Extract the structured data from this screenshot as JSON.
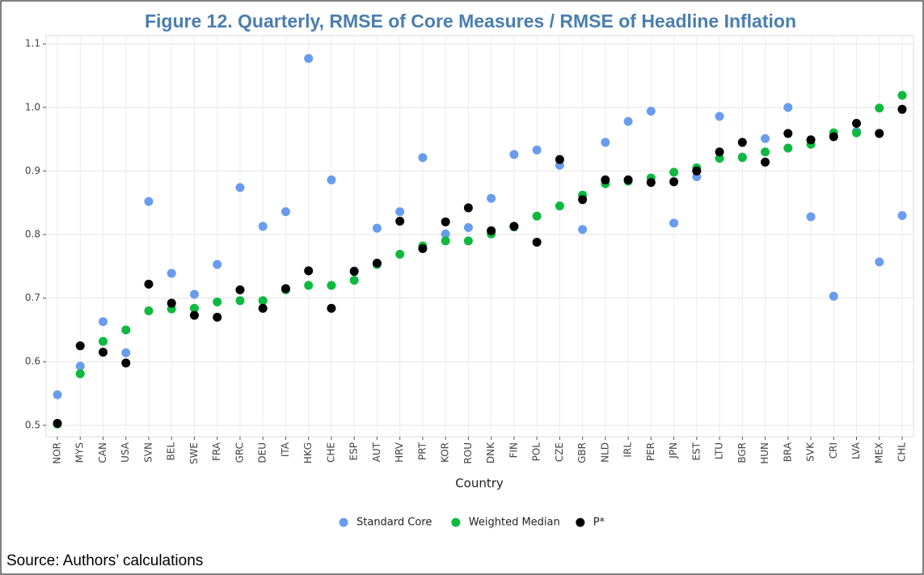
{
  "chart_data": {
    "type": "dot",
    "title": "Figure 12. Quarterly,  RMSE of Core Measures / RMSE of Headline Inflation",
    "x_label": "Country",
    "source": "Source: Authors’ calculations",
    "categories": [
      "NOR",
      "MYS",
      "CAN",
      "USA",
      "SVN",
      "BEL",
      "SWE",
      "FRA",
      "GRC",
      "DEU",
      "ITA",
      "HKG",
      "CHE",
      "ESP",
      "AUT",
      "HRV",
      "PRT",
      "KOR",
      "ROU",
      "DNK",
      "FIN",
      "POL",
      "CZE",
      "GBR",
      "NLD",
      "IRL",
      "PER",
      "JPN",
      "EST",
      "LTU",
      "BGR",
      "HUN",
      "BRA",
      "SVK",
      "CRI",
      "LVA",
      "MEX",
      "CHL"
    ],
    "series": [
      {
        "name": "Standard Core",
        "color": "#6a9cee",
        "values": [
          0.548,
          0.593,
          0.663,
          0.614,
          0.852,
          0.739,
          0.706,
          0.753,
          0.874,
          0.813,
          0.836,
          1.077,
          0.886,
          0.743,
          0.81,
          0.836,
          0.921,
          0.801,
          0.811,
          0.857,
          0.926,
          0.933,
          0.909,
          0.808,
          0.945,
          0.978,
          0.994,
          0.818,
          0.891,
          0.986,
          0.922,
          0.951,
          1.0,
          0.828,
          0.703,
          0.962,
          0.757,
          0.83
        ]
      },
      {
        "name": "Weighted Median",
        "color": "#0dba3f",
        "values": [
          0.502,
          0.581,
          0.632,
          0.65,
          0.68,
          0.683,
          0.684,
          0.694,
          0.696,
          0.696,
          0.713,
          0.72,
          0.72,
          0.728,
          0.753,
          0.769,
          0.782,
          0.79,
          0.79,
          0.801,
          0.812,
          0.829,
          0.845,
          0.862,
          0.88,
          0.884,
          0.889,
          0.898,
          0.905,
          0.92,
          0.921,
          0.93,
          0.936,
          0.942,
          0.96,
          0.96,
          0.999,
          1.019
        ]
      },
      {
        "name": "P*",
        "color": "#000000",
        "values": [
          0.503,
          0.625,
          0.615,
          0.598,
          0.722,
          0.692,
          0.673,
          0.67,
          0.713,
          0.684,
          0.715,
          0.743,
          0.684,
          0.742,
          0.755,
          0.821,
          0.778,
          0.82,
          0.842,
          0.806,
          0.813,
          0.788,
          0.918,
          0.855,
          0.886,
          0.886,
          0.882,
          0.883,
          0.9,
          0.93,
          0.945,
          0.914,
          0.959,
          0.949,
          0.954,
          0.975,
          0.959,
          0.997
        ]
      }
    ],
    "ylim": [
      0.482,
      1.113
    ],
    "yticks": [
      0.5,
      0.6,
      0.7,
      0.8,
      0.9,
      {
        "value": 1,
        "label": "1.0"
      },
      1.1
    ],
    "grid": true,
    "legend": "bottom"
  }
}
